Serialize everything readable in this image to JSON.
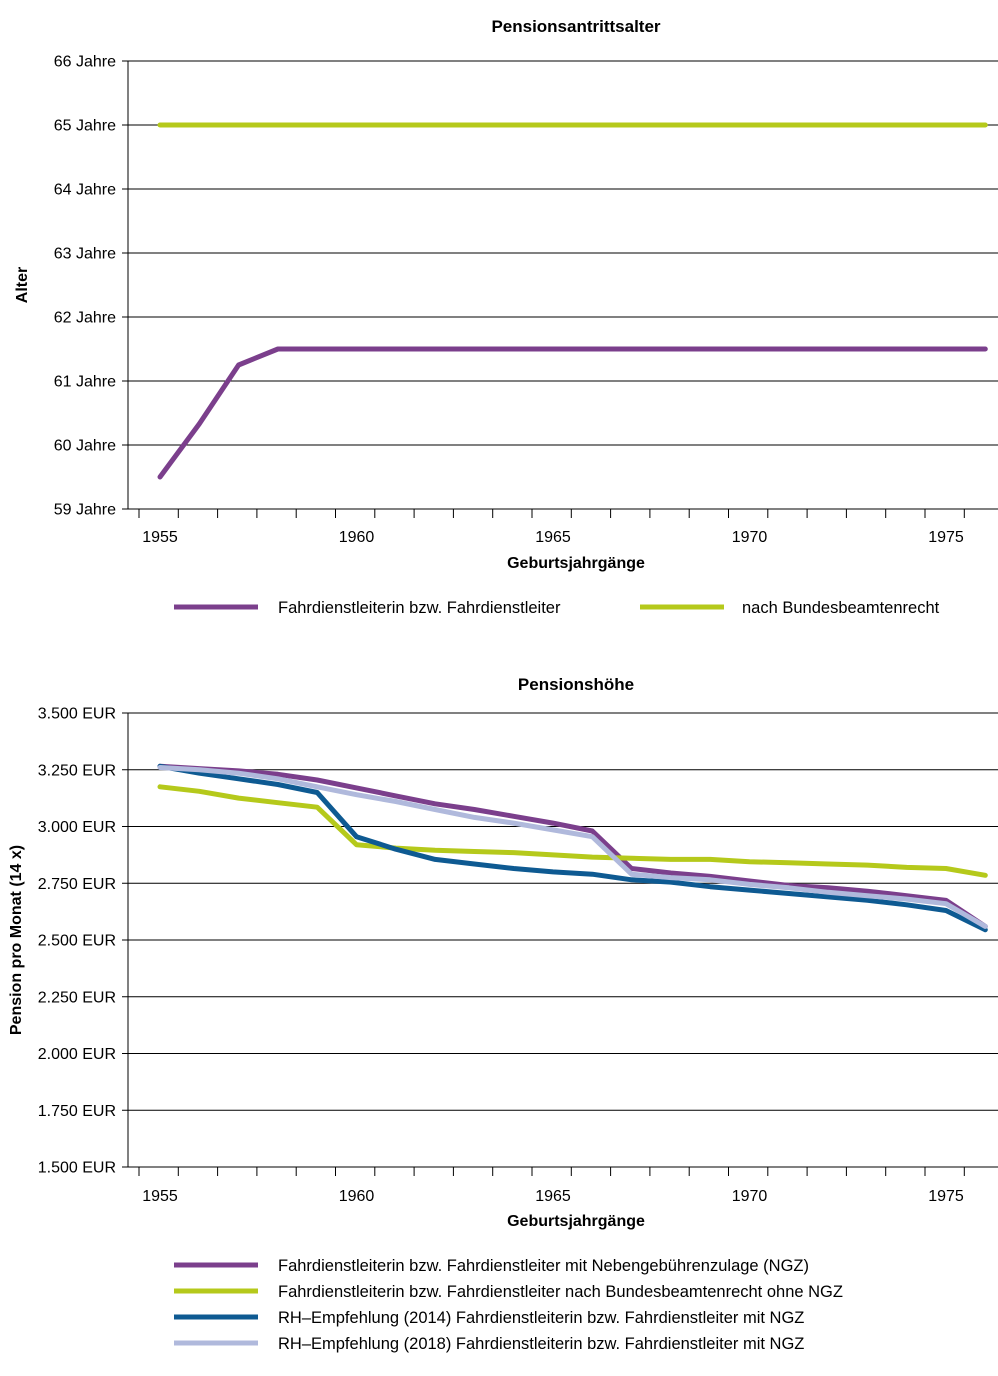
{
  "chart_data": [
    {
      "type": "line",
      "title": "Pensionsantrittsalter",
      "xlabel": "Geburtsjahrgänge",
      "ylabel": "Alter",
      "xlim": [
        1955,
        1976
      ],
      "ylim": [
        59,
        66
      ],
      "x_ticks": [
        1955,
        1960,
        1965,
        1970,
        1975
      ],
      "y_ticks": [
        "59 Jahre",
        "60 Jahre",
        "61 Jahre",
        "62 Jahre",
        "63 Jahre",
        "64 Jahre",
        "65 Jahre",
        "66 Jahre"
      ],
      "grid": true,
      "legend_position": "bottom",
      "series": [
        {
          "name": "Fahrdienstleiterin bzw. Fahrdienstleiter",
          "color": "#7b3f8c",
          "x": [
            1955,
            1956,
            1957,
            1958,
            1959,
            1960,
            1965,
            1970,
            1975,
            1976
          ],
          "y": [
            59.5,
            60.33,
            61.25,
            61.5,
            61.5,
            61.5,
            61.5,
            61.5,
            61.5,
            61.5
          ]
        },
        {
          "name": "nach Bundesbeamtenrecht",
          "color": "#b5c91b",
          "x": [
            1955,
            1976
          ],
          "y": [
            65,
            65
          ]
        }
      ]
    },
    {
      "type": "line",
      "title": "Pensionshöhe",
      "xlabel": "Geburtsjahrgänge",
      "ylabel": "Pension pro Monat (14 x)",
      "xlim": [
        1955,
        1976
      ],
      "ylim": [
        1500,
        3500
      ],
      "x_ticks": [
        1955,
        1960,
        1965,
        1970,
        1975
      ],
      "y_ticks": [
        "1.500 EUR",
        "1.750 EUR",
        "2.000 EUR",
        "2.250 EUR",
        "2.500 EUR",
        "2.750 EUR",
        "3.000 EUR",
        "3.250 EUR",
        "3.500 EUR"
      ],
      "grid": true,
      "legend_position": "bottom",
      "series": [
        {
          "name": "Fahrdienstleiterin bzw. Fahrdienstleiter mit Nebengebührenzulage (NGZ)",
          "color": "#7b3f8c",
          "x": [
            1955,
            1956,
            1957,
            1958,
            1959,
            1960,
            1961,
            1962,
            1963,
            1964,
            1965,
            1966,
            1967,
            1968,
            1969,
            1970,
            1971,
            1972,
            1973,
            1974,
            1975,
            1976
          ],
          "y": [
            3265,
            3255,
            3245,
            3230,
            3205,
            3170,
            3135,
            3100,
            3075,
            3045,
            3015,
            2980,
            2815,
            2795,
            2780,
            2760,
            2740,
            2730,
            2715,
            2695,
            2675,
            2560
          ]
        },
        {
          "name": "Fahrdienstleiterin bzw. Fahrdienstleiter nach Bundesbeamtenrecht ohne NGZ",
          "color": "#b5c91b",
          "x": [
            1955,
            1956,
            1957,
            1958,
            1959,
            1960,
            1961,
            1962,
            1963,
            1964,
            1965,
            1966,
            1967,
            1968,
            1969,
            1970,
            1971,
            1972,
            1973,
            1974,
            1975,
            1976
          ],
          "y": [
            3175,
            3155,
            3125,
            3105,
            3085,
            2920,
            2905,
            2895,
            2890,
            2885,
            2875,
            2865,
            2860,
            2855,
            2855,
            2845,
            2840,
            2835,
            2830,
            2820,
            2815,
            2785
          ]
        },
        {
          "name": "RH–Empfehlung (2014) Fahrdienstleiterin bzw. Fahrdienstleiter mit NGZ",
          "color": "#0e5a92",
          "x": [
            1955,
            1956,
            1957,
            1958,
            1959,
            1960,
            1961,
            1962,
            1963,
            1964,
            1965,
            1966,
            1967,
            1968,
            1969,
            1970,
            1971,
            1972,
            1973,
            1974,
            1975,
            1976
          ],
          "y": [
            3265,
            3235,
            3210,
            3185,
            3150,
            2955,
            2900,
            2855,
            2835,
            2815,
            2800,
            2790,
            2765,
            2755,
            2735,
            2720,
            2705,
            2690,
            2675,
            2655,
            2630,
            2545
          ]
        },
        {
          "name": "RH–Empfehlung (2018) Fahrdienstleiterin bzw. Fahrdienstleiter mit NGZ",
          "color": "#b0b9dc",
          "x": [
            1955,
            1956,
            1957,
            1958,
            1959,
            1960,
            1961,
            1962,
            1963,
            1964,
            1965,
            1966,
            1967,
            1968,
            1969,
            1970,
            1971,
            1972,
            1973,
            1974,
            1975,
            1976
          ],
          "y": [
            3260,
            3250,
            3235,
            3210,
            3175,
            3140,
            3110,
            3075,
            3040,
            3015,
            2985,
            2955,
            2790,
            2775,
            2765,
            2745,
            2730,
            2710,
            2695,
            2680,
            2660,
            2560
          ]
        }
      ]
    }
  ]
}
